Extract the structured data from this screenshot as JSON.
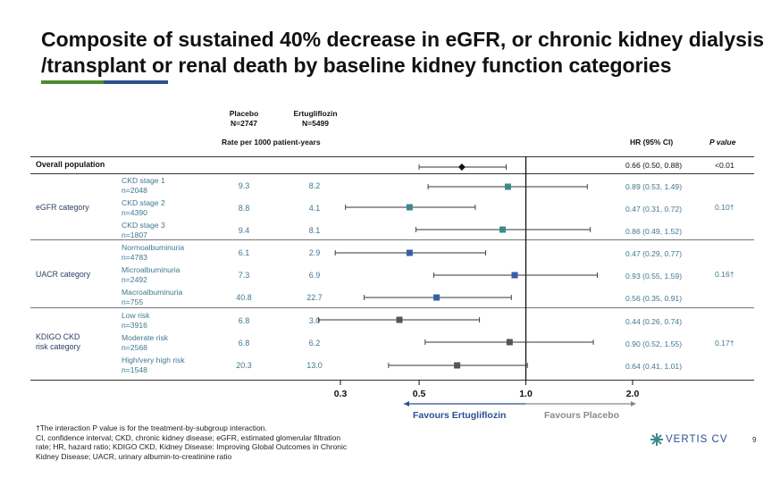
{
  "slide": {
    "title": "Composite of sustained 40% decrease in eGFR, or chronic kidney dialysis /transplant or renal death by baseline kidney function categories",
    "page_number": "9",
    "logo_text": "VERTIS CV",
    "accent_colors": [
      "#4f8a2e",
      "#2d4f8e"
    ]
  },
  "headers": {
    "placebo": "Placebo",
    "placebo_n": "N=2747",
    "ertu": "Ertugliflozin",
    "ertu_n": "N=5499",
    "rate": "Rate per 1000 patient-years",
    "hr": "HR (95% CI)",
    "p": "P value"
  },
  "overall": {
    "label": "Overall population",
    "hr_text": "0.66 (0.50, 0.88)",
    "p": "<0.01"
  },
  "groups": [
    {
      "label": "eGFR category",
      "p": "0.10†",
      "rows": [
        {
          "name": "CKD stage 1",
          "n": "n=2048",
          "placebo": "9.3",
          "ertu": "8.2",
          "hr_text": "0.89 (0.53, 1.49)"
        },
        {
          "name": "CKD stage 2",
          "n": "n=4390",
          "placebo": "8.8",
          "ertu": "4.1",
          "hr_text": "0.47 (0.31, 0.72)"
        },
        {
          "name": "CKD stage 3",
          "n": "n=1807",
          "placebo": "9.4",
          "ertu": "8.1",
          "hr_text": "0.86 (0.49, 1.52)"
        }
      ]
    },
    {
      "label": "UACR category",
      "p": "0.16†",
      "rows": [
        {
          "name": "Normoalbuminuria",
          "n": "n=4783",
          "placebo": "6.1",
          "ertu": "2.9",
          "hr_text": "0.47 (0.29, 0.77)"
        },
        {
          "name": "Microalbuminuria",
          "n": "n=2492",
          "placebo": "7.3",
          "ertu": "6.9",
          "hr_text": "0.93 (0.55, 1.59)"
        },
        {
          "name": "Macroalbuminuria",
          "n": "n=755",
          "placebo": "40.8",
          "ertu": "22.7",
          "hr_text": "0.56 (0.35, 0.91)"
        }
      ]
    },
    {
      "label_line1": "KDIGO CKD",
      "label_line2": "risk category",
      "p": "0.17†",
      "rows": [
        {
          "name": "Low risk",
          "n": "n=3916",
          "placebo": "6.8",
          "ertu": "3.0",
          "hr_text": "0.44 (0.26, 0.74)"
        },
        {
          "name": "Moderate risk",
          "n": "n=2568",
          "placebo": "6.8",
          "ertu": "6.2",
          "hr_text": "0.90 (0.52, 1.55)"
        },
        {
          "name": "High/very high risk",
          "n": "n=1548",
          "placebo": "20.3",
          "ertu": "13.0",
          "hr_text": "0.64 (0.41, 1.01)"
        }
      ]
    }
  ],
  "axis": {
    "favours_left": "Favours Ertugliflozin",
    "favours_right": "Favours Placebo"
  },
  "footnotes": {
    "line1": "†The interaction P value is for the treatment-by-subgroup interaction.",
    "line2": "CI, confidence interval; CKD, chronic kidney disease; eGFR, estimated glomerular filtration",
    "line3": "rate; HR, hazard ratio; KDIGO CKD, Kidney Disease: Improving Global Outcomes in Chronic",
    "line4": "Kidney Disease; UACR, urinary albumin-to-creatinine ratio"
  },
  "chart_data": {
    "type": "forest",
    "xscale": "log",
    "xlim": [
      0.3,
      2.0
    ],
    "reference": 1.0,
    "ticks": [
      0.3,
      0.5,
      1.0,
      2.0
    ],
    "tick_labels": [
      "0.3",
      "0.5",
      "1.0",
      "2.0"
    ],
    "points": [
      {
        "key": "overall",
        "hr": 0.66,
        "lo": 0.5,
        "hi": 0.88,
        "marker": "diamond",
        "color": "#111111"
      },
      {
        "key": "ckd1",
        "hr": 0.89,
        "lo": 0.53,
        "hi": 1.49,
        "marker": "square",
        "color": "#3a8a8c"
      },
      {
        "key": "ckd2",
        "hr": 0.47,
        "lo": 0.31,
        "hi": 0.72,
        "marker": "square",
        "color": "#3a8a8c"
      },
      {
        "key": "ckd3",
        "hr": 0.86,
        "lo": 0.49,
        "hi": 1.52,
        "marker": "square",
        "color": "#3a8a8c"
      },
      {
        "key": "normo",
        "hr": 0.47,
        "lo": 0.29,
        "hi": 0.77,
        "marker": "square",
        "color": "#3560a8"
      },
      {
        "key": "micro",
        "hr": 0.93,
        "lo": 0.55,
        "hi": 1.59,
        "marker": "square",
        "color": "#3560a8"
      },
      {
        "key": "macro",
        "hr": 0.56,
        "lo": 0.35,
        "hi": 0.91,
        "marker": "square",
        "color": "#3560a8"
      },
      {
        "key": "low",
        "hr": 0.44,
        "lo": 0.26,
        "hi": 0.74,
        "marker": "square",
        "color": "#555555"
      },
      {
        "key": "moderate",
        "hr": 0.9,
        "lo": 0.52,
        "hi": 1.55,
        "marker": "square",
        "color": "#555555"
      },
      {
        "key": "high",
        "hr": 0.64,
        "lo": 0.41,
        "hi": 1.01,
        "marker": "square",
        "color": "#555555"
      }
    ]
  }
}
